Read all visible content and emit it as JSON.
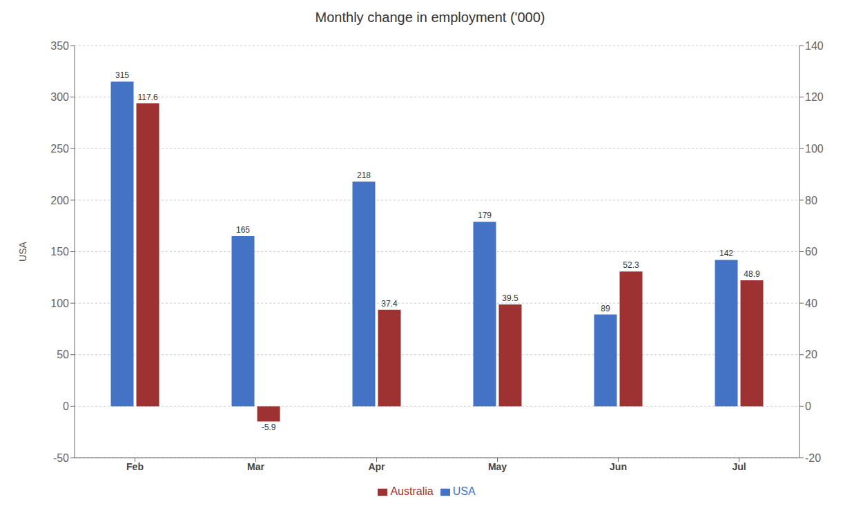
{
  "chart_data": {
    "type": "bar",
    "title": "Monthly change in employment ('000)",
    "categories": [
      "Feb",
      "Mar",
      "Apr",
      "May",
      "Jun",
      "Jul"
    ],
    "series": [
      {
        "name": "USA",
        "color": "#4472C4",
        "values": [
          315,
          165,
          218,
          179,
          89,
          142
        ]
      },
      {
        "name": "Australia",
        "color": "#9E3233",
        "values": [
          117.6,
          -5.9,
          37.4,
          39.5,
          52.3,
          48.9
        ],
        "axis": "y2"
      }
    ],
    "ylabel": "USA",
    "ylim": [
      -50,
      350
    ],
    "yticks": [
      -50,
      0,
      50,
      100,
      150,
      200,
      250,
      300,
      350
    ],
    "y2lim": [
      -20,
      140
    ],
    "y2ticks": [
      -20,
      0,
      20,
      40,
      60,
      80,
      100,
      120,
      140
    ],
    "grid": true,
    "legend": "bottom",
    "data_labels": true
  }
}
